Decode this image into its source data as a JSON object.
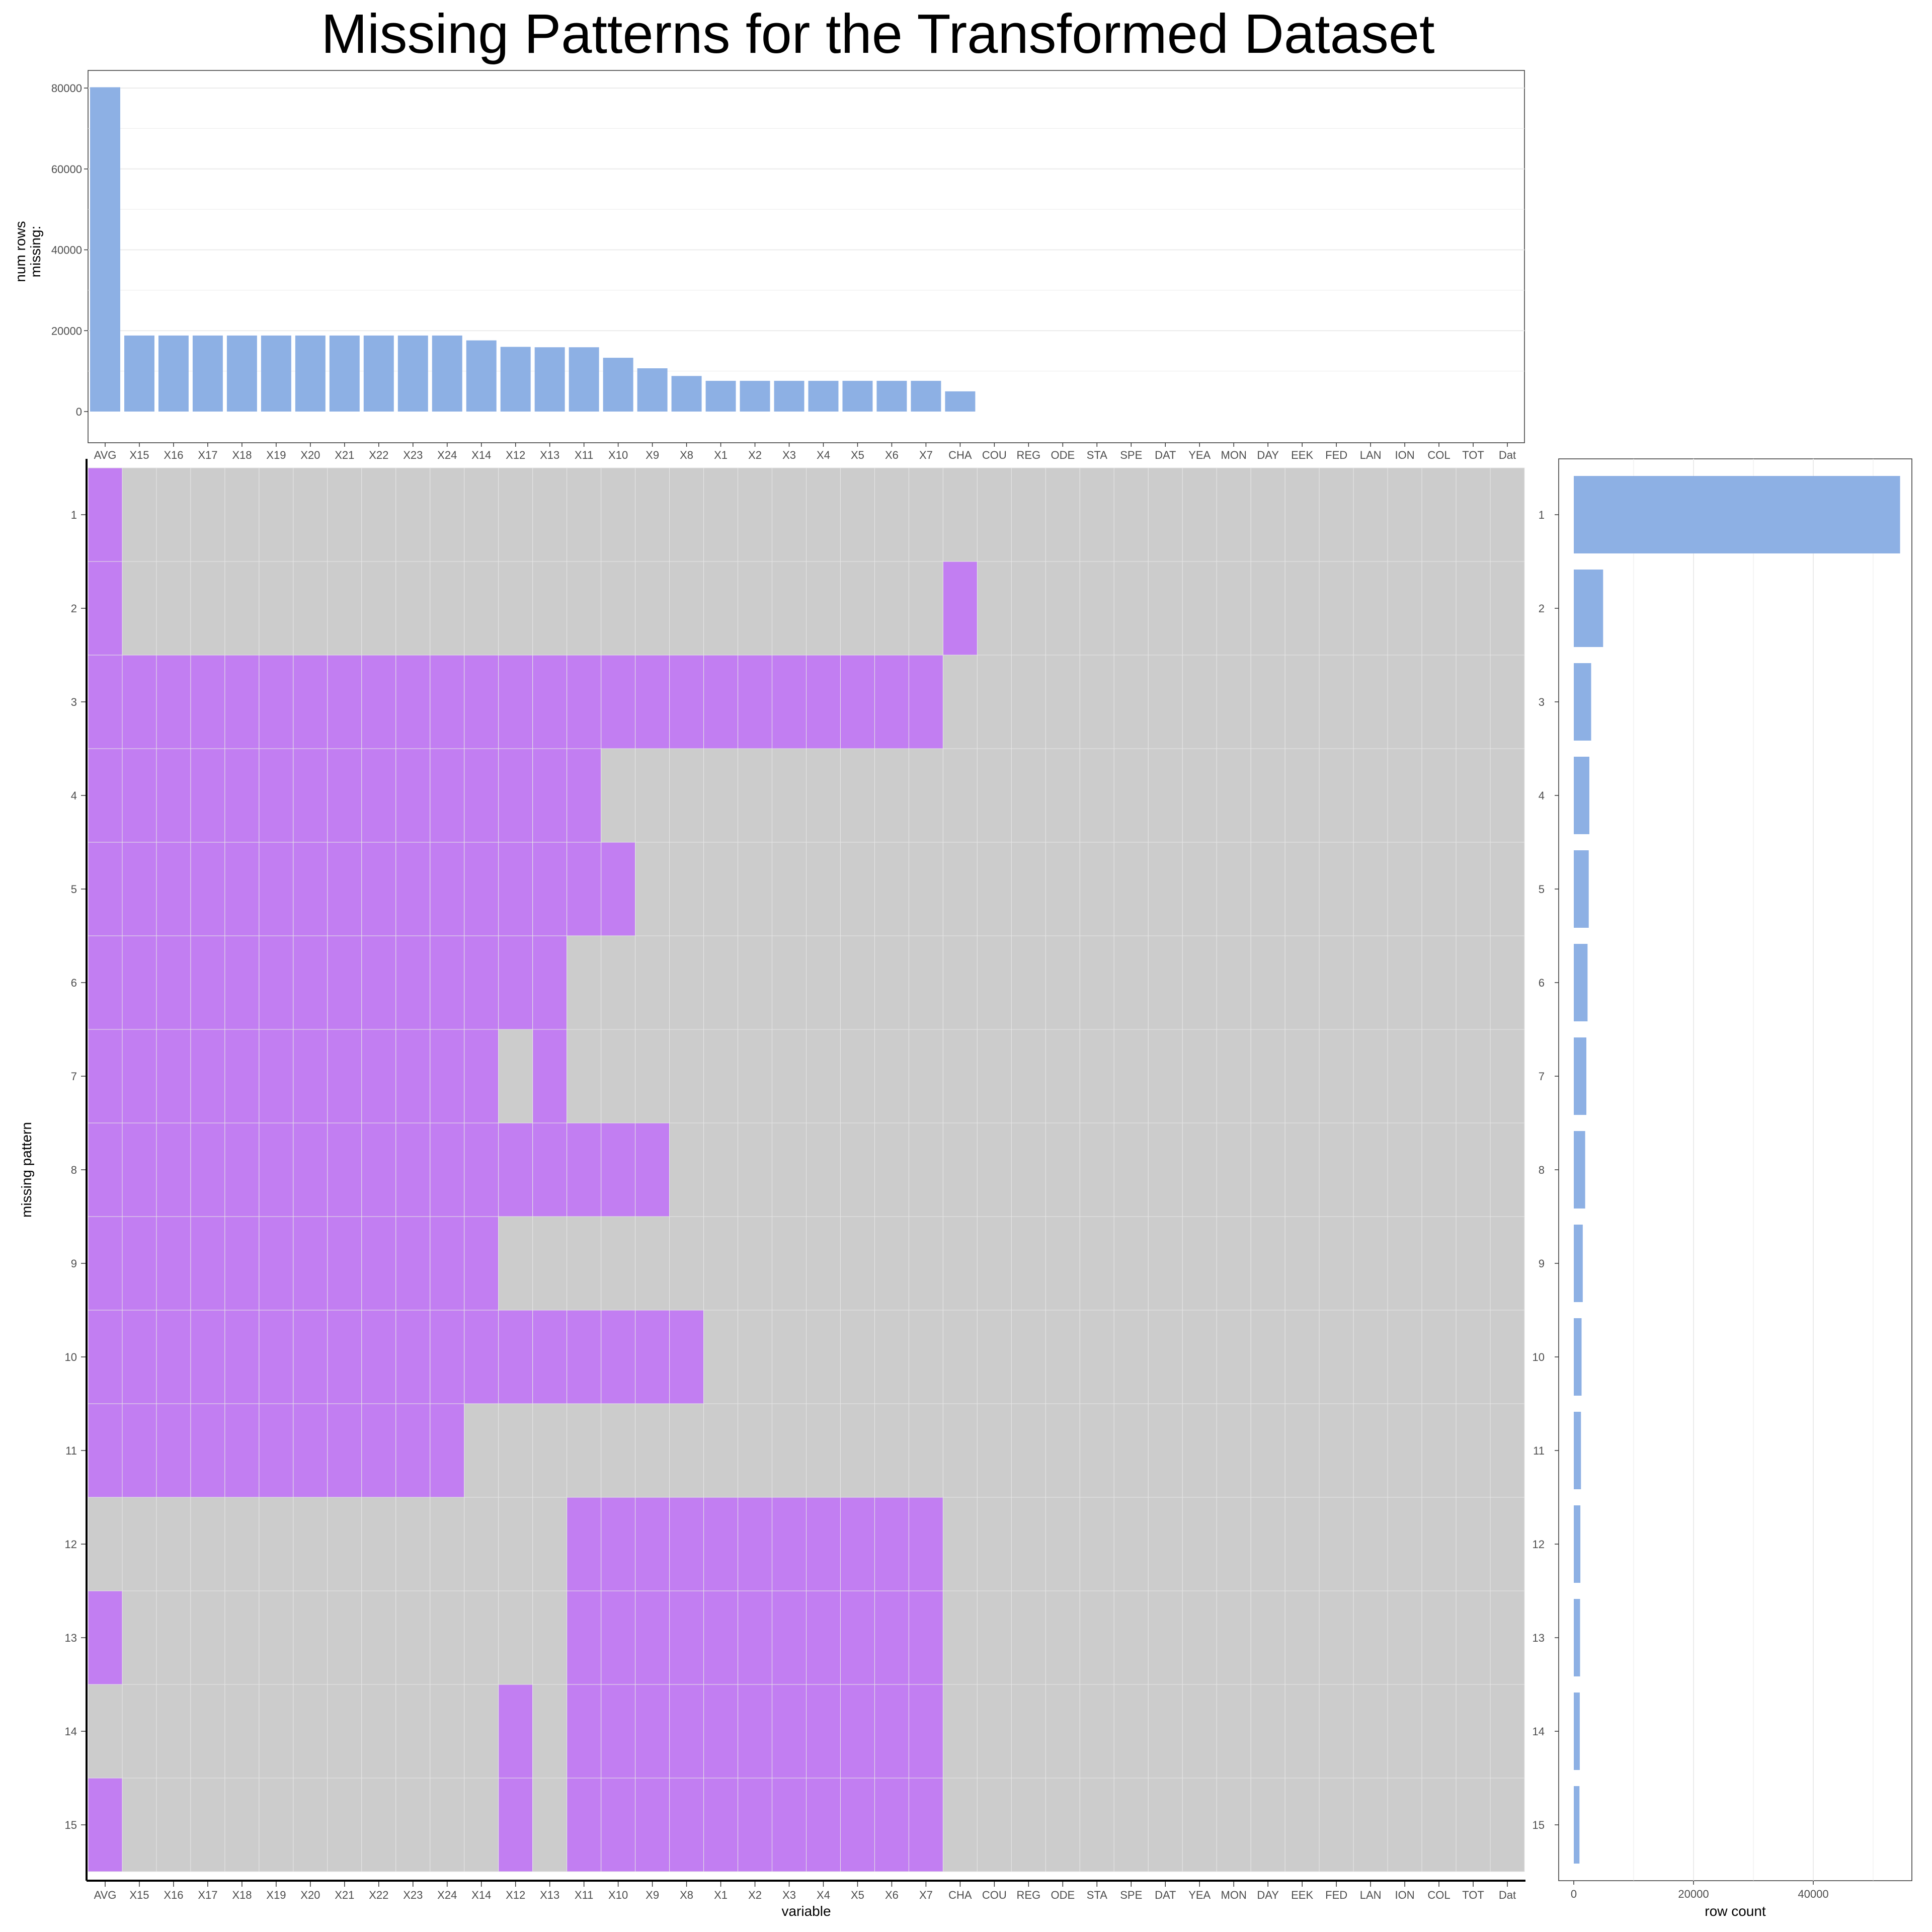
{
  "title": "Missing Patterns for the Transformed Dataset",
  "colors": {
    "bar": "#8DB0E4",
    "missing": "#C27EF2",
    "present": "#CCCCCC",
    "grid": "#EBEBEB",
    "panel_border": "#333333"
  },
  "chart_data": [
    {
      "type": "bar",
      "panel": "top",
      "title": "",
      "xlabel": "",
      "ylabel": "num rows\nmissing:",
      "ylim": [
        0,
        82000
      ],
      "yticks": [
        0,
        20000,
        40000,
        60000,
        80000
      ],
      "categories": [
        "AVG",
        "X15",
        "X16",
        "X17",
        "X18",
        "X19",
        "X20",
        "X21",
        "X22",
        "X23",
        "X24",
        "X14",
        "X12",
        "X13",
        "X11",
        "X10",
        "X9",
        "X8",
        "X1",
        "X2",
        "X3",
        "X4",
        "X5",
        "X6",
        "X7",
        "CHA",
        "COU",
        "REG",
        "ODE",
        "STA",
        "SPE",
        "DAT",
        "YEA",
        "MON",
        "DAY",
        "EEK",
        "FED",
        "LAN",
        "ION",
        "COL",
        "TOT",
        "Dat"
      ],
      "values": [
        80200,
        18800,
        18800,
        18800,
        18800,
        18800,
        18800,
        18800,
        18800,
        18800,
        18800,
        17600,
        16000,
        15900,
        15900,
        13300,
        10700,
        8800,
        7600,
        7600,
        7600,
        7600,
        7600,
        7600,
        7600,
        5000,
        0,
        0,
        0,
        0,
        0,
        0,
        0,
        0,
        0,
        0,
        0,
        0,
        0,
        0,
        0,
        0
      ],
      "grid": true
    },
    {
      "type": "heatmap",
      "panel": "main",
      "xlabel": "variable",
      "ylabel": "missing pattern",
      "variables": [
        "AVG",
        "X15",
        "X16",
        "X17",
        "X18",
        "X19",
        "X20",
        "X21",
        "X22",
        "X23",
        "X24",
        "X14",
        "X12",
        "X13",
        "X11",
        "X10",
        "X9",
        "X8",
        "X1",
        "X2",
        "X3",
        "X4",
        "X5",
        "X6",
        "X7",
        "CHA",
        "COU",
        "REG",
        "ODE",
        "STA",
        "SPE",
        "DAT",
        "YEA",
        "MON",
        "DAY",
        "EEK",
        "FED",
        "LAN",
        "ION",
        "COL",
        "TOT",
        "Dat"
      ],
      "patterns": [
        "1",
        "2",
        "3",
        "4",
        "5",
        "6",
        "7",
        "8",
        "9",
        "10",
        "11",
        "12",
        "13",
        "14",
        "15"
      ],
      "missing": [
        [
          "AVG"
        ],
        [
          "AVG",
          "CHA"
        ],
        [
          "AVG",
          "X15",
          "X16",
          "X17",
          "X18",
          "X19",
          "X20",
          "X21",
          "X22",
          "X23",
          "X24",
          "X14",
          "X12",
          "X13",
          "X11",
          "X10",
          "X9",
          "X8",
          "X1",
          "X2",
          "X3",
          "X4",
          "X5",
          "X6",
          "X7"
        ],
        [
          "AVG",
          "X15",
          "X16",
          "X17",
          "X18",
          "X19",
          "X20",
          "X21",
          "X22",
          "X23",
          "X24",
          "X14",
          "X12",
          "X13",
          "X11"
        ],
        [
          "AVG",
          "X15",
          "X16",
          "X17",
          "X18",
          "X19",
          "X20",
          "X21",
          "X22",
          "X23",
          "X24",
          "X14",
          "X12",
          "X13",
          "X11",
          "X10"
        ],
        [
          "AVG",
          "X15",
          "X16",
          "X17",
          "X18",
          "X19",
          "X20",
          "X21",
          "X22",
          "X23",
          "X24",
          "X14",
          "X12",
          "X13"
        ],
        [
          "AVG",
          "X15",
          "X16",
          "X17",
          "X18",
          "X19",
          "X20",
          "X21",
          "X22",
          "X23",
          "X24",
          "X14",
          "X13"
        ],
        [
          "AVG",
          "X15",
          "X16",
          "X17",
          "X18",
          "X19",
          "X20",
          "X21",
          "X22",
          "X23",
          "X24",
          "X14",
          "X12",
          "X13",
          "X11",
          "X10",
          "X9"
        ],
        [
          "AVG",
          "X15",
          "X16",
          "X17",
          "X18",
          "X19",
          "X20",
          "X21",
          "X22",
          "X23",
          "X24",
          "X14"
        ],
        [
          "AVG",
          "X15",
          "X16",
          "X17",
          "X18",
          "X19",
          "X20",
          "X21",
          "X22",
          "X23",
          "X24",
          "X14",
          "X12",
          "X13",
          "X11",
          "X10",
          "X9",
          "X8"
        ],
        [
          "AVG",
          "X15",
          "X16",
          "X17",
          "X18",
          "X19",
          "X20",
          "X21",
          "X22",
          "X23",
          "X24"
        ],
        [
          "X11",
          "X10",
          "X9",
          "X8",
          "X1",
          "X2",
          "X3",
          "X4",
          "X5",
          "X6",
          "X7"
        ],
        [
          "AVG",
          "X11",
          "X10",
          "X9",
          "X8",
          "X1",
          "X2",
          "X3",
          "X4",
          "X5",
          "X6",
          "X7"
        ],
        [
          "X12",
          "X11",
          "X10",
          "X9",
          "X8",
          "X1",
          "X2",
          "X3",
          "X4",
          "X5",
          "X6",
          "X7"
        ],
        [
          "AVG",
          "X12",
          "X11",
          "X10",
          "X9",
          "X8",
          "X1",
          "X2",
          "X3",
          "X4",
          "X5",
          "X6",
          "X7"
        ]
      ]
    },
    {
      "type": "bar",
      "orientation": "horizontal",
      "panel": "right",
      "xlabel": "row count",
      "ylabel": "",
      "xlim": [
        0,
        56000
      ],
      "xticks": [
        0,
        20000,
        40000
      ],
      "categories": [
        "1",
        "2",
        "3",
        "4",
        "5",
        "6",
        "7",
        "8",
        "9",
        "10",
        "11",
        "12",
        "13",
        "14",
        "15"
      ],
      "values": [
        54500,
        4900,
        2900,
        2600,
        2500,
        2300,
        2100,
        1900,
        1500,
        1300,
        1200,
        1100,
        1050,
        1000,
        950
      ],
      "grid": true
    }
  ]
}
